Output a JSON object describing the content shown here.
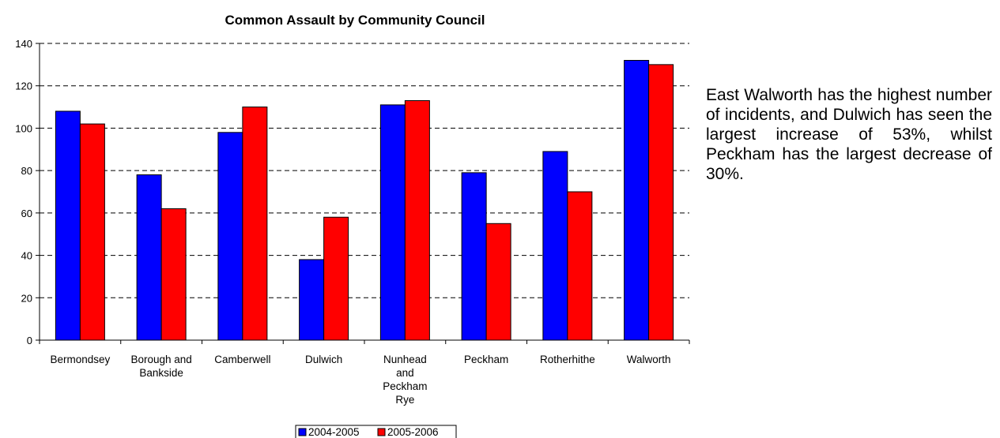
{
  "chart_data": {
    "type": "bar",
    "title": "Common Assault by Community Council",
    "xlabel": "",
    "ylabel": "",
    "ylim": [
      0,
      140
    ],
    "yticks": [
      0,
      20,
      40,
      60,
      80,
      100,
      120,
      140
    ],
    "grid": true,
    "legend_position": "bottom",
    "categories": [
      [
        "Bermondsey"
      ],
      [
        "Borough and",
        "Bankside"
      ],
      [
        "Camberwell"
      ],
      [
        "Dulwich"
      ],
      [
        "Nunhead",
        "and",
        "Peckham",
        "Rye"
      ],
      [
        "Peckham"
      ],
      [
        "Rotherhithe"
      ],
      [
        "Walworth"
      ]
    ],
    "series": [
      {
        "name": "2004-2005",
        "color": "#0000ff",
        "values": [
          108,
          78,
          98,
          38,
          111,
          79,
          89,
          132
        ]
      },
      {
        "name": "2005-2006",
        "color": "#ff0000",
        "values": [
          102,
          62,
          110,
          58,
          113,
          55,
          70,
          130
        ]
      }
    ]
  },
  "side_text": "East Walworth has the highest number of incidents, and Dulwich has seen the largest increase of 53%, whilst Peckham has the largest decrease of 30%."
}
